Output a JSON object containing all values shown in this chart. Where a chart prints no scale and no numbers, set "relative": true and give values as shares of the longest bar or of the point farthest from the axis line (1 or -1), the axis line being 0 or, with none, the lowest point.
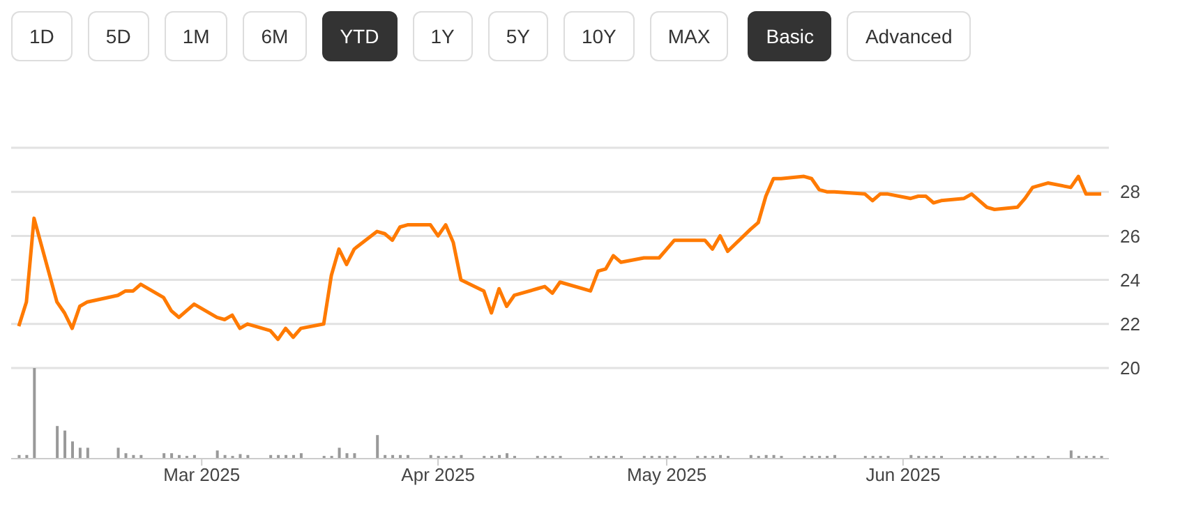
{
  "chart_data": [
    {
      "type": "line",
      "annotations": [
        "1D",
        "5D",
        "1M",
        "6M",
        "YTD",
        "1Y",
        "5Y",
        "10Y",
        "MAX",
        "Basic",
        "Advanced"
      ],
      "x": [
        "2025-02-05",
        "2025-02-06",
        "2025-02-07",
        "2025-02-10",
        "2025-02-11",
        "2025-02-12",
        "2025-02-13",
        "2025-02-14",
        "2025-02-18",
        "2025-02-19",
        "2025-02-20",
        "2025-02-21",
        "2025-02-24",
        "2025-02-25",
        "2025-02-26",
        "2025-02-27",
        "2025-02-28",
        "2025-03-03",
        "2025-03-04",
        "2025-03-05",
        "2025-03-06",
        "2025-03-07",
        "2025-03-10",
        "2025-03-11",
        "2025-03-12",
        "2025-03-13",
        "2025-03-14",
        "2025-03-17",
        "2025-03-18",
        "2025-03-19",
        "2025-03-20",
        "2025-03-21",
        "2025-03-24",
        "2025-03-25",
        "2025-03-26",
        "2025-03-27",
        "2025-03-28",
        "2025-03-31",
        "2025-04-01",
        "2025-04-02",
        "2025-04-03",
        "2025-04-04",
        "2025-04-07",
        "2025-04-08",
        "2025-04-09",
        "2025-04-10",
        "2025-04-11",
        "2025-04-14",
        "2025-04-15",
        "2025-04-16",
        "2025-04-17",
        "2025-04-21",
        "2025-04-22",
        "2025-04-23",
        "2025-04-24",
        "2025-04-25",
        "2025-04-28",
        "2025-04-29",
        "2025-04-30",
        "2025-05-01",
        "2025-05-02",
        "2025-05-05",
        "2025-05-06",
        "2025-05-07",
        "2025-05-08",
        "2025-05-09",
        "2025-05-12",
        "2025-05-13",
        "2025-05-14",
        "2025-05-15",
        "2025-05-16",
        "2025-05-19",
        "2025-05-20",
        "2025-05-21",
        "2025-05-22",
        "2025-05-23",
        "2025-05-27",
        "2025-05-28",
        "2025-05-29",
        "2025-05-30",
        "2025-06-02",
        "2025-06-03",
        "2025-06-04",
        "2025-06-05",
        "2025-06-06",
        "2025-06-09",
        "2025-06-10",
        "2025-06-11",
        "2025-06-12",
        "2025-06-13",
        "2025-06-16",
        "2025-06-17",
        "2025-06-18",
        "2025-06-20",
        "2025-06-23",
        "2025-06-24",
        "2025-06-25",
        "2025-06-26",
        "2025-06-27"
      ],
      "series": [
        {
          "color": "#ff7a00",
          "values": [
            21.9,
            23.0,
            26.8,
            23.0,
            22.5,
            21.8,
            22.8,
            23.0,
            23.3,
            23.5,
            23.5,
            23.8,
            23.2,
            22.6,
            22.3,
            22.6,
            22.9,
            22.3,
            22.2,
            22.4,
            21.8,
            22.0,
            21.7,
            21.3,
            21.8,
            21.4,
            21.8,
            22.0,
            24.2,
            25.4,
            24.7,
            25.4,
            26.2,
            26.1,
            25.8,
            26.4,
            26.5,
            26.5,
            26.0,
            26.5,
            25.7,
            24.0,
            23.5,
            22.5,
            23.6,
            22.8,
            23.3,
            23.6,
            23.7,
            23.4,
            23.9,
            23.5,
            24.4,
            24.5,
            25.1,
            24.8,
            25.0,
            25.0,
            25.0,
            25.4,
            25.8,
            25.8,
            25.8,
            25.4,
            26.0,
            25.3,
            26.3,
            26.6,
            27.8,
            28.6,
            28.6,
            28.7,
            28.6,
            28.1,
            28.0,
            28.0,
            27.9,
            27.6,
            27.9,
            27.9,
            27.7,
            27.8,
            27.8,
            27.5,
            27.6,
            27.7,
            27.9,
            27.6,
            27.3,
            27.2,
            27.3,
            27.7,
            28.2,
            28.4,
            28.2,
            28.7,
            27.9,
            27.9,
            27.9
          ]
        }
      ],
      "xlim": [
        "2025-02-04",
        "2025-06-28"
      ],
      "ylim": [
        20,
        30
      ],
      "yticks": [
        20,
        22,
        24,
        26,
        28,
        {
          "value": 30,
          "label": null
        }
      ],
      "grid": "y",
      "tick_labels": "y",
      "marker": "none"
    },
    {
      "type": "bar",
      "relative": true,
      "x": [
        "2025-02-05",
        "2025-02-06",
        "2025-02-07",
        "2025-02-10",
        "2025-02-11",
        "2025-02-12",
        "2025-02-13",
        "2025-02-14",
        "2025-02-18",
        "2025-02-19",
        "2025-02-20",
        "2025-02-21",
        "2025-02-24",
        "2025-02-25",
        "2025-02-26",
        "2025-02-27",
        "2025-02-28",
        "2025-03-03",
        "2025-03-04",
        "2025-03-05",
        "2025-03-06",
        "2025-03-07",
        "2025-03-10",
        "2025-03-11",
        "2025-03-12",
        "2025-03-13",
        "2025-03-14",
        "2025-03-17",
        "2025-03-18",
        "2025-03-19",
        "2025-03-20",
        "2025-03-21",
        "2025-03-24",
        "2025-03-25",
        "2025-03-26",
        "2025-03-27",
        "2025-03-28",
        "2025-03-31",
        "2025-04-01",
        "2025-04-02",
        "2025-04-03",
        "2025-04-04",
        "2025-04-07",
        "2025-04-08",
        "2025-04-09",
        "2025-04-10",
        "2025-04-11",
        "2025-04-14",
        "2025-04-15",
        "2025-04-16",
        "2025-04-17",
        "2025-04-21",
        "2025-04-22",
        "2025-04-23",
        "2025-04-24",
        "2025-04-25",
        "2025-04-28",
        "2025-04-29",
        "2025-04-30",
        "2025-05-01",
        "2025-05-02",
        "2025-05-05",
        "2025-05-06",
        "2025-05-07",
        "2025-05-08",
        "2025-05-09",
        "2025-05-12",
        "2025-05-13",
        "2025-05-14",
        "2025-05-15",
        "2025-05-16",
        "2025-05-19",
        "2025-05-20",
        "2025-05-21",
        "2025-05-22",
        "2025-05-23",
        "2025-05-27",
        "2025-05-28",
        "2025-05-29",
        "2025-05-30",
        "2025-06-02",
        "2025-06-03",
        "2025-06-04",
        "2025-06-05",
        "2025-06-06",
        "2025-06-09",
        "2025-06-10",
        "2025-06-11",
        "2025-06-12",
        "2025-06-13",
        "2025-06-16",
        "2025-06-17",
        "2025-06-18",
        "2025-06-20",
        "2025-06-23",
        "2025-06-24",
        "2025-06-25",
        "2025-06-26",
        "2025-06-27"
      ],
      "series": [
        {
          "color": "#999999",
          "values": [
            0.04,
            0.04,
            1,
            0.36,
            0.31,
            0.19,
            0.12,
            0.12,
            0.12,
            0.06,
            0.04,
            0.04,
            0.06,
            0.06,
            0.04,
            0.03,
            0.04,
            0.09,
            0.04,
            0.03,
            0.05,
            0.04,
            0.04,
            0.04,
            0.04,
            0.04,
            0.06,
            0.03,
            0.03,
            0.12,
            0.06,
            0.06,
            0.26,
            0.04,
            0.04,
            0.04,
            0.04,
            0.04,
            0.03,
            0.03,
            0.03,
            0.04,
            0.03,
            0.03,
            0.04,
            0.06,
            0.03,
            0.03,
            0.03,
            0.03,
            0.03,
            0.03,
            0.03,
            0.03,
            0.03,
            0.03,
            0.03,
            0.03,
            0.03,
            0.03,
            0.03,
            0.03,
            0.03,
            0.03,
            0.04,
            0.03,
            0.04,
            0.03,
            0.04,
            0.04,
            0.03,
            0.03,
            0.03,
            0.03,
            0.03,
            0.04,
            0.03,
            0.03,
            0.03,
            0.03,
            0.04,
            0.03,
            0.03,
            0.03,
            0.03,
            0.03,
            0.03,
            0.03,
            0.03,
            0.03,
            0.03,
            0.03,
            0.03,
            0.03,
            0.09,
            0.03,
            0.03,
            0.03,
            0.03
          ]
        }
      ],
      "xlim": [
        "2025-02-04",
        "2025-06-28"
      ],
      "xticks": [
        {
          "value": "2025-03-01",
          "label": "Mar 2025"
        },
        {
          "value": "2025-04-01",
          "label": "Apr 2025"
        },
        {
          "value": "2025-05-01",
          "label": "May 2025"
        },
        {
          "value": "2025-06-01",
          "label": "Jun 2025"
        }
      ],
      "tick_labels": "x"
    }
  ]
}
